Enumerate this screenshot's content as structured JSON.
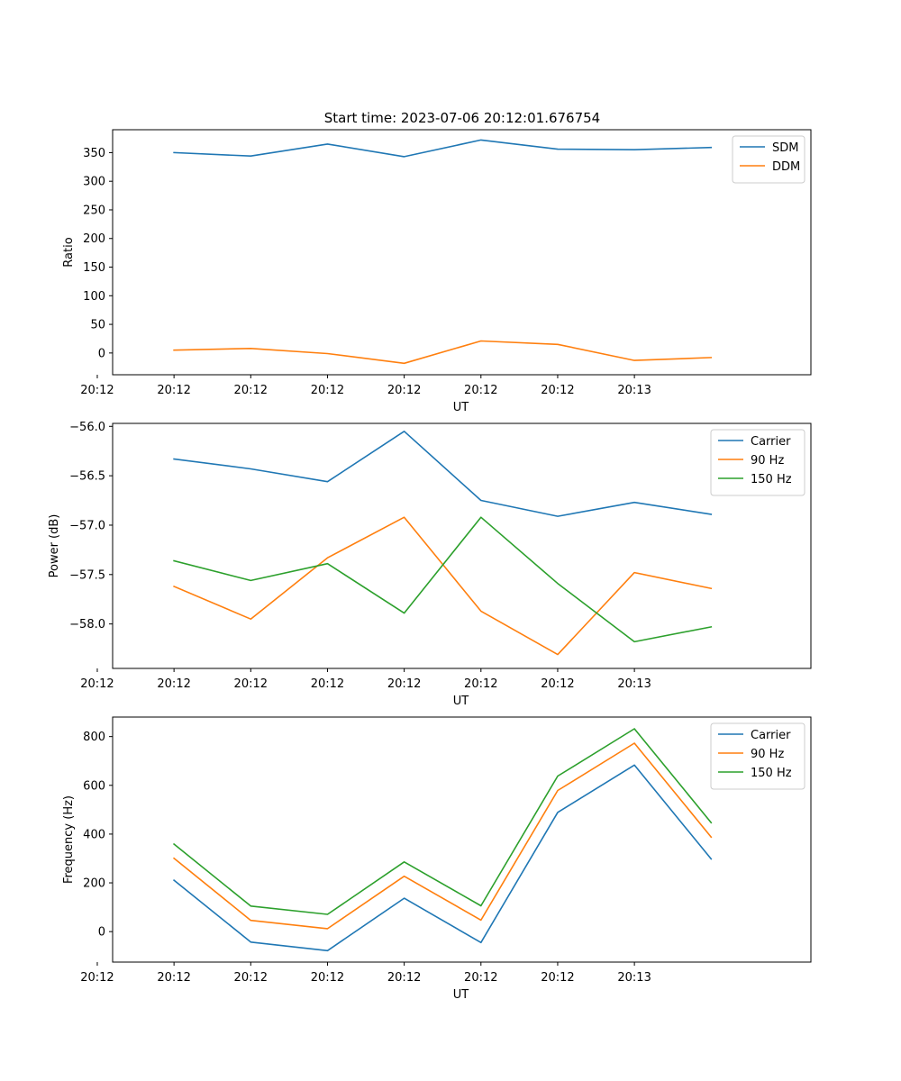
{
  "figure_title": "Start time: 2023-07-06 20:12:01.676754",
  "chart_data": [
    {
      "type": "line",
      "title": "Start time: 2023-07-06 20:12:01.676754",
      "xlabel": "UT",
      "ylabel": "Ratio",
      "x_tick_labels": [
        "20:12",
        "20:12",
        "20:12",
        "20:12",
        "20:12",
        "20:12",
        "20:12",
        "20:13"
      ],
      "x": [
        1,
        2,
        3,
        4,
        5,
        6,
        7,
        8
      ],
      "xlim": [
        0.2,
        9.3
      ],
      "ylim": [
        -38,
        390
      ],
      "yticks": [
        0,
        50,
        100,
        150,
        200,
        250,
        300,
        350
      ],
      "legend_position": "top-right",
      "series": [
        {
          "name": "SDM",
          "color": "#1f77b4",
          "values": [
            350,
            344,
            365,
            343,
            372,
            356,
            355,
            359
          ]
        },
        {
          "name": "DDM",
          "color": "#ff7f0e",
          "values": [
            5,
            8,
            -1,
            -18,
            21,
            15,
            -13,
            -8
          ]
        }
      ]
    },
    {
      "type": "line",
      "title": "",
      "xlabel": "UT",
      "ylabel": "Power (dB)",
      "x_tick_labels": [
        "20:12",
        "20:12",
        "20:12",
        "20:12",
        "20:12",
        "20:12",
        "20:12",
        "20:13"
      ],
      "x": [
        1,
        2,
        3,
        4,
        5,
        6,
        7,
        8
      ],
      "xlim": [
        0.2,
        9.3
      ],
      "ylim": [
        -58.45,
        -55.97
      ],
      "yticks": [
        -58.0,
        -57.5,
        -57.0,
        -56.5,
        -56.0
      ],
      "legend_position": "top-right",
      "series": [
        {
          "name": "Carrier",
          "color": "#1f77b4",
          "values": [
            -56.33,
            -56.43,
            -56.56,
            -56.05,
            -56.75,
            -56.91,
            -56.77,
            -56.89
          ]
        },
        {
          "name": "90 Hz",
          "color": "#ff7f0e",
          "values": [
            -57.62,
            -57.95,
            -57.33,
            -56.92,
            -57.87,
            -58.31,
            -57.48,
            -57.64
          ]
        },
        {
          "name": "150 Hz",
          "color": "#2ca02c",
          "values": [
            -57.36,
            -57.56,
            -57.39,
            -57.89,
            -56.92,
            -57.59,
            -58.18,
            -58.03
          ]
        }
      ]
    },
    {
      "type": "line",
      "title": "",
      "xlabel": "UT",
      "ylabel": "Frequency (Hz)",
      "x_tick_labels": [
        "20:12",
        "20:12",
        "20:12",
        "20:12",
        "20:12",
        "20:12",
        "20:12",
        "20:13"
      ],
      "x": [
        1,
        2,
        3,
        4,
        5,
        6,
        7,
        8
      ],
      "xlim": [
        0.2,
        9.3
      ],
      "ylim": [
        -125,
        880
      ],
      "yticks": [
        0,
        200,
        400,
        600,
        800
      ],
      "legend_position": "top-right",
      "series": [
        {
          "name": "Carrier",
          "color": "#1f77b4",
          "values": [
            211,
            -43,
            -78,
            137,
            -45,
            489,
            683,
            298
          ]
        },
        {
          "name": "90 Hz",
          "color": "#ff7f0e",
          "values": [
            301,
            46,
            12,
            227,
            47,
            579,
            773,
            388
          ]
        },
        {
          "name": "150 Hz",
          "color": "#2ca02c",
          "values": [
            359,
            105,
            71,
            286,
            106,
            638,
            832,
            447
          ]
        }
      ]
    }
  ]
}
